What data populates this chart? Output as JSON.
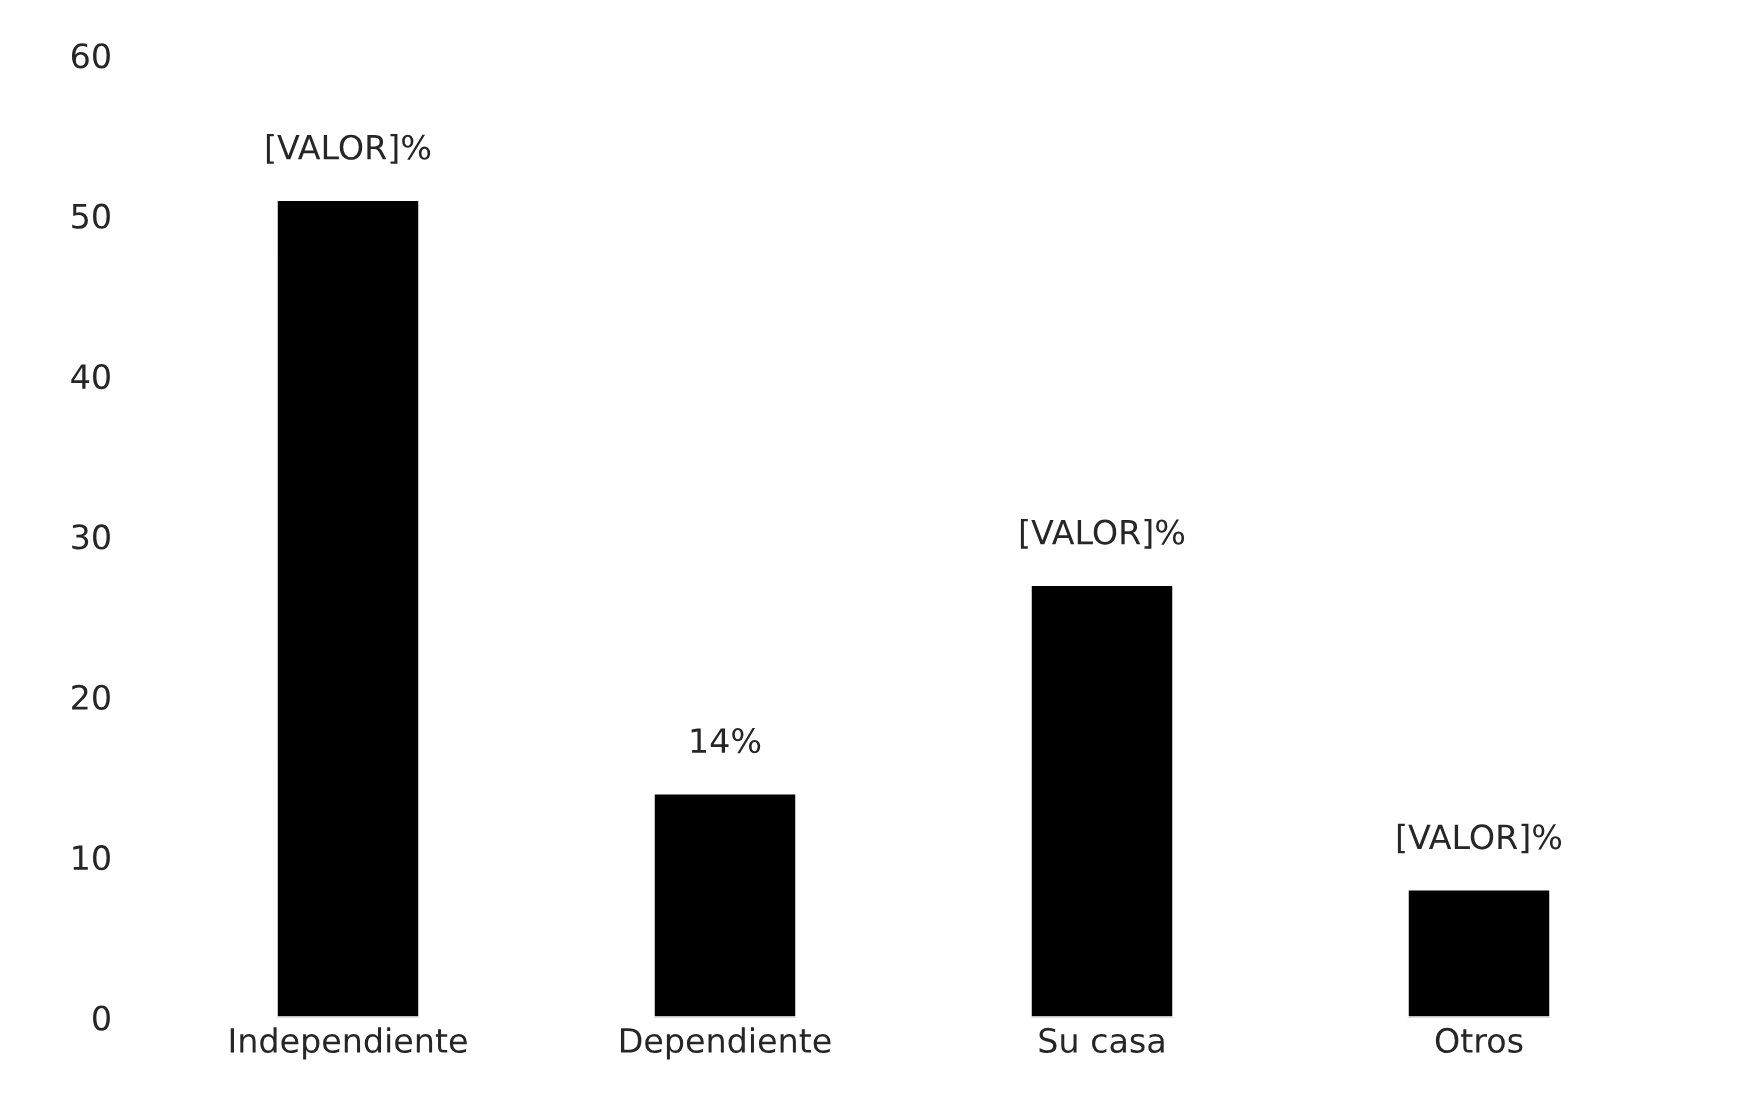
{
  "chart_data": {
    "type": "bar",
    "categories": [
      "Independiente",
      "Dependiente",
      "Su casa",
      "Otros"
    ],
    "values": [
      51,
      14,
      27,
      8
    ],
    "value_labels": [
      "[VALOR]%",
      "14%",
      "[VALOR]%",
      "[VALOR]%"
    ],
    "color": "#000000",
    "ylim": [
      0,
      60
    ],
    "yticks": [
      0,
      10,
      20,
      30,
      40,
      50,
      60
    ],
    "grid": false
  }
}
